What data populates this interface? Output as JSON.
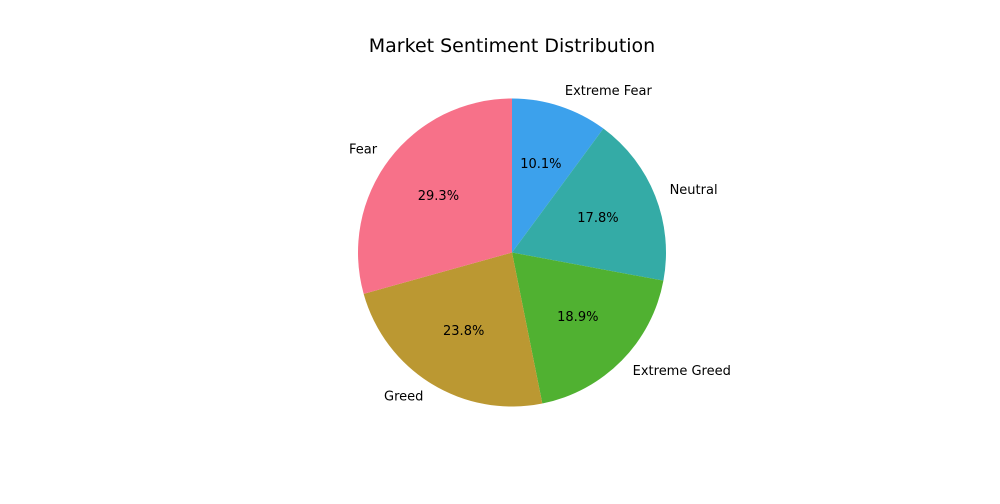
{
  "chart_data": {
    "type": "pie",
    "title": "Market Sentiment Distribution",
    "start_angle_deg": 90,
    "direction": "clockwise",
    "slices": [
      {
        "label": "Extreme Fear",
        "value": 10.1,
        "pct_label": "10.1%",
        "color": "#3ca1ec"
      },
      {
        "label": "Neutral",
        "value": 17.8,
        "pct_label": "17.8%",
        "color": "#34aba6"
      },
      {
        "label": "Extreme Greed",
        "value": 18.9,
        "pct_label": "18.9%",
        "color": "#50b131"
      },
      {
        "label": "Greed",
        "value": 23.8,
        "pct_label": "23.8%",
        "color": "#bb9832"
      },
      {
        "label": "Fear",
        "value": 29.3,
        "pct_label": "29.3%",
        "color": "#f77189"
      }
    ]
  }
}
